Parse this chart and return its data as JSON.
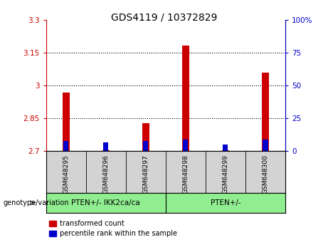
{
  "title": "GDS4119 / 10372829",
  "samples": [
    "GSM648295",
    "GSM648296",
    "GSM648297",
    "GSM648298",
    "GSM648299",
    "GSM648300"
  ],
  "red_values": [
    2.97,
    2.705,
    2.83,
    3.185,
    2.705,
    3.06
  ],
  "blue_values_pct": [
    8,
    7,
    8,
    9,
    5,
    9
  ],
  "y_min": 2.7,
  "y_max": 3.3,
  "y_ticks": [
    2.7,
    2.85,
    3.0,
    3.15,
    3.3
  ],
  "y_tick_labels": [
    "2.7",
    "2.85",
    "3",
    "3.15",
    "3.3"
  ],
  "right_ticks": [
    0,
    25,
    50,
    75,
    100
  ],
  "right_tick_labels": [
    "0",
    "25",
    "50",
    "75",
    "100%"
  ],
  "groups": [
    {
      "label": "PTEN+/- IKK2ca/ca",
      "start": 0,
      "end": 2
    },
    {
      "label": "PTEN+/-",
      "start": 3,
      "end": 5
    }
  ],
  "group_color": "#90EE90",
  "sample_box_color": "#d3d3d3",
  "red_color": "#CC0000",
  "blue_color": "#0000CC",
  "bar_width": 0.18,
  "title_fontsize": 10,
  "tick_fontsize": 7.5,
  "plot_bg": "#ffffff",
  "legend_red_label": "transformed count",
  "legend_blue_label": "percentile rank within the sample",
  "geno_label": "genotype/variation"
}
